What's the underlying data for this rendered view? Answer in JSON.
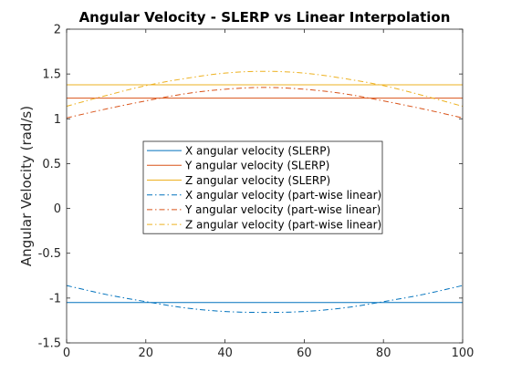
{
  "chart_data": {
    "type": "line",
    "title": "Angular Velocity - SLERP vs Linear Interpolation",
    "xlabel": "",
    "ylabel": "Angular Velocity (rad/s)",
    "xlim": [
      0,
      100
    ],
    "ylim": [
      -1.5,
      2
    ],
    "xticks": [
      "0",
      "20",
      "40",
      "60",
      "80",
      "100"
    ],
    "yticks": [
      "-1.5",
      "-1",
      "-0.5",
      "0",
      "0.5",
      "1",
      "1.5",
      "2"
    ],
    "grid": false,
    "legend_position": "center-left",
    "series": [
      {
        "name": "X angular velocity (SLERP)",
        "color": "#0072BD",
        "dash": "solid",
        "x": [
          0,
          100
        ],
        "y": [
          -1.05,
          -1.05
        ]
      },
      {
        "name": "Y angular velocity (SLERP)",
        "color": "#D95319",
        "dash": "solid",
        "x": [
          0,
          100
        ],
        "y": [
          1.23,
          1.23
        ]
      },
      {
        "name": "Z angular velocity (SLERP)",
        "color": "#EDB120",
        "dash": "solid",
        "x": [
          0,
          100
        ],
        "y": [
          1.38,
          1.38
        ]
      },
      {
        "name": "X angular velocity (part-wise linear)",
        "color": "#0072BD",
        "dash": "dashdot",
        "x": [
          0,
          10,
          20,
          30,
          40,
          50,
          60,
          70,
          80,
          90,
          100
        ],
        "y": [
          -0.86,
          -0.96,
          -1.04,
          -1.11,
          -1.15,
          -1.16,
          -1.15,
          -1.11,
          -1.04,
          -0.96,
          -0.86
        ]
      },
      {
        "name": "Y angular velocity (part-wise linear)",
        "color": "#D95319",
        "dash": "dashdot",
        "x": [
          0,
          10,
          20,
          30,
          40,
          50,
          60,
          70,
          80,
          90,
          100
        ],
        "y": [
          1.01,
          1.11,
          1.2,
          1.28,
          1.33,
          1.35,
          1.33,
          1.28,
          1.2,
          1.11,
          1.01
        ]
      },
      {
        "name": "Z angular velocity (part-wise linear)",
        "color": "#EDB120",
        "dash": "dashdot",
        "x": [
          0,
          10,
          20,
          30,
          40,
          50,
          60,
          70,
          80,
          90,
          100
        ],
        "y": [
          1.14,
          1.26,
          1.37,
          1.45,
          1.51,
          1.53,
          1.51,
          1.45,
          1.37,
          1.26,
          1.14
        ]
      }
    ]
  }
}
